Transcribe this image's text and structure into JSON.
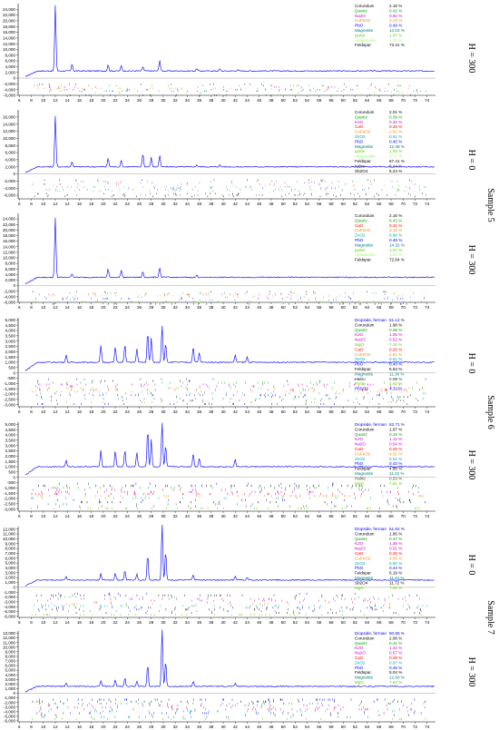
{
  "figure": {
    "side_labels": [
      "H = 300",
      "H = 0",
      "H = 300",
      "H = 0",
      "H = 300",
      "H = 0",
      "H = 300"
    ],
    "sample_labels": [
      "Sample 5",
      "Sample 6",
      "Sample 7"
    ]
  },
  "chart_data": [
    {
      "type": "line",
      "x": [
        6,
        8,
        10,
        12,
        14,
        16,
        18,
        20,
        22,
        24,
        26,
        28,
        30,
        32,
        34,
        36,
        38,
        40,
        42,
        44,
        46,
        48,
        50,
        52,
        54,
        56,
        58,
        60,
        62,
        64,
        66,
        68,
        70,
        72,
        74
      ],
      "yticks": [
        "-6,000",
        "-4,000",
        "-2,000",
        "0",
        "2,000",
        "4,000",
        "6,000",
        "8,000",
        "10,000",
        "12,000",
        "14,000",
        "16,000",
        "18,000",
        "20,000",
        "22,000",
        "24,000"
      ],
      "ylim": [
        -6000,
        26000
      ],
      "background": 2500,
      "peaks": [
        [
          12,
          23000
        ],
        [
          14.8,
          2400
        ],
        [
          20.8,
          2200
        ],
        [
          23,
          1800
        ],
        [
          26.6,
          1600
        ],
        [
          29.4,
          3800
        ],
        [
          35.6,
          900
        ],
        [
          39.4,
          700
        ],
        [
          42.4,
          500
        ]
      ],
      "line_color": "#1a1aff",
      "legend": [
        {
          "name": "Corundum",
          "pct": "2.18 %",
          "color": "#000000"
        },
        {
          "name": "Quartz",
          "pct": "0.42 %",
          "color": "#00aa00"
        },
        {
          "name": "Na2O",
          "pct": "0.50 %",
          "color": "#cc00cc"
        },
        {
          "name": "CuFeO2",
          "pct": "3.13 %",
          "color": "#ff8800"
        },
        {
          "name": "PbO",
          "pct": "0.49 %",
          "color": "#0000ff"
        },
        {
          "name": "Magnetite",
          "pct": "14.03 %",
          "color": "#008080"
        },
        {
          "name": "pyrite",
          "pct": "1.07 %",
          "color": "#66cc00"
        },
        {
          "name": "Akaganeite",
          "pct": "4.01 %",
          "color": "#99ff66"
        },
        {
          "name": "Feldspar",
          "pct": "73.31 %",
          "color": "#000000"
        }
      ]
    },
    {
      "type": "line",
      "x": [
        6,
        8,
        10,
        12,
        14,
        16,
        18,
        20,
        22,
        24,
        26,
        28,
        30,
        32,
        34,
        36,
        38,
        40,
        42,
        44,
        46,
        48,
        50,
        52,
        54,
        56,
        58,
        60,
        62,
        64,
        66,
        68,
        70,
        72,
        74
      ],
      "yticks": [
        "-6,000",
        "-4,000",
        "-2,000",
        "0",
        "2,000",
        "4,000",
        "6,000",
        "8,000",
        "10,000",
        "12,000",
        "14,000",
        "16,000"
      ],
      "ylim": [
        -7000,
        18000
      ],
      "background": 2000,
      "peaks": [
        [
          12,
          14500
        ],
        [
          14.8,
          1500
        ],
        [
          20.8,
          2400
        ],
        [
          23,
          1800
        ],
        [
          26.6,
          3800
        ],
        [
          28,
          2600
        ],
        [
          29.4,
          3200
        ],
        [
          35.6,
          600
        ],
        [
          39.4,
          500
        ]
      ],
      "line_color": "#1a1aff",
      "legend": [
        {
          "name": "Corundum",
          "pct": "2.01 %",
          "color": "#000000"
        },
        {
          "name": "Quartz",
          "pct": "0.39 %",
          "color": "#00aa00"
        },
        {
          "name": "K2O",
          "pct": "0.32 %",
          "color": "#cc00cc"
        },
        {
          "name": "CaO",
          "pct": "0.28 %",
          "color": "#ff0000"
        },
        {
          "name": "CuFeO2",
          "pct": "2.61 %",
          "color": "#ff8800"
        },
        {
          "name": "ZnO2",
          "pct": "0.61 %",
          "color": "#00aaaa"
        },
        {
          "name": "PbO",
          "pct": "0.40 %",
          "color": "#0000ff"
        },
        {
          "name": "Magnetite",
          "pct": "12.38 %",
          "color": "#008080"
        },
        {
          "name": "pyrite",
          "pct": "1.00 %",
          "color": "#66cc00"
        },
        {
          "name": "Akaganeite",
          "pct": "3.71 %",
          "color": "#99ff66"
        },
        {
          "name": "Feldspar",
          "pct": "67.41 %",
          "color": "#000000"
        },
        {
          "name": "halite",
          "pct": "5.14 %",
          "color": "#444444"
        },
        {
          "name": "Sb2O4",
          "pct": "5.24 %",
          "color": "#000000"
        }
      ]
    },
    {
      "type": "line",
      "x": [
        6,
        8,
        10,
        12,
        14,
        16,
        18,
        20,
        22,
        24,
        26,
        28,
        30,
        32,
        34,
        36,
        38,
        40,
        42,
        44,
        46,
        48,
        50,
        52,
        54,
        56,
        58,
        60,
        62,
        64,
        66,
        68,
        70,
        72,
        74
      ],
      "yticks": [
        "-6,000",
        "-4,000",
        "-2,000",
        "0",
        "2,000",
        "4,000",
        "6,000",
        "8,000",
        "10,000",
        "12,000",
        "14,000",
        "16,000",
        "18,000",
        "20,000",
        "22,000",
        "24,000"
      ],
      "ylim": [
        -6000,
        26000
      ],
      "background": 3000,
      "peaks": [
        [
          12,
          21500
        ],
        [
          14.8,
          1500
        ],
        [
          20.8,
          3000
        ],
        [
          23,
          2500
        ],
        [
          26.6,
          2000
        ],
        [
          29.4,
          3600
        ],
        [
          35.6,
          800
        ]
      ],
      "line_color": "#1a1aff",
      "legend": [
        {
          "name": "Corundum",
          "pct": "2.16 %",
          "color": "#000000"
        },
        {
          "name": "Quartz",
          "pct": "0.43 %",
          "color": "#00aa00"
        },
        {
          "name": "CaO",
          "pct": "0.31 %",
          "color": "#ff0000"
        },
        {
          "name": "CuFeO2",
          "pct": "3.10 %",
          "color": "#ff8800"
        },
        {
          "name": "ZnO2",
          "pct": "0.66 %",
          "color": "#00aaaa"
        },
        {
          "name": "PbO",
          "pct": "0.48 %",
          "color": "#0000ff"
        },
        {
          "name": "Magnetite",
          "pct": "14.32 %",
          "color": "#008080"
        },
        {
          "name": "pyrite",
          "pct": "1.07 %",
          "color": "#66cc00"
        },
        {
          "name": "Akaganeite",
          "pct": "3.92 %",
          "color": "#99ff66"
        },
        {
          "name": "Feldspar",
          "pct": "72.64 %",
          "color": "#000000"
        }
      ]
    },
    {
      "type": "line",
      "x": [
        6,
        8,
        10,
        12,
        14,
        16,
        18,
        20,
        22,
        24,
        26,
        28,
        30,
        32,
        34,
        36,
        38,
        40,
        42,
        44,
        46,
        48,
        50,
        52,
        54,
        56,
        58,
        60,
        62,
        64,
        66,
        68,
        70,
        72,
        74
      ],
      "yticks": [
        "-3,000",
        "-2,500",
        "-2,000",
        "-1,500",
        "-1,000",
        "-500",
        "0",
        "500",
        "1,000",
        "1,500",
        "2,000",
        "2,500",
        "3,000",
        "3,500",
        "4,000",
        "4,500",
        "5,000"
      ],
      "ylim": [
        -3200,
        5200
      ],
      "background": 1000,
      "peaks": [
        [
          13.8,
          700
        ],
        [
          19.6,
          1600
        ],
        [
          22,
          1500
        ],
        [
          23.6,
          1700
        ],
        [
          25.6,
          1300
        ],
        [
          27.4,
          2800
        ],
        [
          28,
          2300
        ],
        [
          29.8,
          3500
        ],
        [
          30.4,
          1800
        ],
        [
          35,
          1500
        ],
        [
          36,
          900
        ],
        [
          42,
          700
        ],
        [
          44,
          500
        ]
      ],
      "line_color": "#1a1aff",
      "legend": [
        {
          "name": "Diopside, ferroan",
          "pct": "51.12 %",
          "color": "#0000ff"
        },
        {
          "name": "Corundum",
          "pct": "1.98 %",
          "color": "#000000"
        },
        {
          "name": "Quartz",
          "pct": "0.38 %",
          "color": "#00aa00"
        },
        {
          "name": "K2O",
          "pct": "1.05 %",
          "color": "#cc00cc"
        },
        {
          "name": "Na2O",
          "pct": "0.52 %",
          "color": "#cc00cc"
        },
        {
          "name": "MgO",
          "pct": "7.10 %",
          "color": "#66cc00"
        },
        {
          "name": "CaO",
          "pct": "0.26 %",
          "color": "#ff0000"
        },
        {
          "name": "CuFeO2",
          "pct": "4.61 %",
          "color": "#ff8800"
        },
        {
          "name": "ZnO2",
          "pct": "0.61 %",
          "color": "#00aaaa"
        },
        {
          "name": "PbO",
          "pct": "0.40 %",
          "color": "#0000ff"
        },
        {
          "name": "Feldspar",
          "pct": "6.53 %",
          "color": "#000000"
        },
        {
          "name": "Magnetite",
          "pct": "11.30 %",
          "color": "#008080"
        },
        {
          "name": "Halite",
          "pct": "0.88 %",
          "color": "#444444"
        },
        {
          "name": "Pyrite",
          "pct": "2.93 %",
          "color": "#66cc00"
        },
        {
          "name": "PbSO3",
          "pct": "4.32 %",
          "color": "#0000ff"
        }
      ]
    },
    {
      "type": "line",
      "x": [
        6,
        8,
        10,
        12,
        14,
        16,
        18,
        20,
        22,
        24,
        26,
        28,
        30,
        32,
        34,
        36,
        38,
        40,
        42,
        44,
        46,
        48,
        50,
        52,
        54,
        56,
        58,
        60,
        62,
        64,
        66,
        68,
        70,
        72,
        74
      ],
      "yticks": [
        "-3,000",
        "-2,500",
        "-2,000",
        "-1,500",
        "-1,000",
        "-500",
        "0",
        "500",
        "1,000",
        "1,500",
        "2,000",
        "2,500",
        "3,000",
        "3,500",
        "4,000",
        "4,500",
        "5,000"
      ],
      "ylim": [
        -3200,
        5200
      ],
      "background": 1000,
      "peaks": [
        [
          13.8,
          600
        ],
        [
          19.6,
          1500
        ],
        [
          22,
          1500
        ],
        [
          23.6,
          1600
        ],
        [
          25.6,
          1400
        ],
        [
          27.4,
          3500
        ],
        [
          28,
          2600
        ],
        [
          29.8,
          4200
        ],
        [
          30.4,
          2000
        ],
        [
          35,
          1300
        ],
        [
          36,
          800
        ],
        [
          42,
          700
        ]
      ],
      "line_color": "#1a1aff",
      "legend": [
        {
          "name": "Diopside, ferroan",
          "pct": "62.71 %",
          "color": "#0000ff"
        },
        {
          "name": "Corundum",
          "pct": "1.97 %",
          "color": "#000000"
        },
        {
          "name": "Quartz",
          "pct": "0.18 %",
          "color": "#00aa00"
        },
        {
          "name": "K2O",
          "pct": "1.12 %",
          "color": "#cc00cc"
        },
        {
          "name": "Na2O",
          "pct": "0.54 %",
          "color": "#cc00cc"
        },
        {
          "name": "CaO",
          "pct": "0.26 %",
          "color": "#ff0000"
        },
        {
          "name": "CuFeO2",
          "pct": "4.51 %",
          "color": "#ff8800"
        },
        {
          "name": "ZnO2",
          "pct": "0.51 %",
          "color": "#00aaaa"
        },
        {
          "name": "PbO",
          "pct": "0.43 %",
          "color": "#0000ff"
        },
        {
          "name": "Feldspar",
          "pct": "4.95 %",
          "color": "#000000"
        },
        {
          "name": "Magnetite",
          "pct": "11.22 %",
          "color": "#008080"
        },
        {
          "name": "Halite",
          "pct": "0.53 %",
          "color": "#444444"
        },
        {
          "name": "MgO",
          "pct": "7.61 %",
          "color": "#66cc00"
        }
      ]
    },
    {
      "type": "line",
      "x": [
        6,
        8,
        10,
        12,
        14,
        16,
        18,
        20,
        22,
        24,
        26,
        28,
        30,
        32,
        34,
        36,
        38,
        40,
        42,
        44,
        46,
        48,
        50,
        52,
        54,
        56,
        58,
        60,
        62,
        64,
        66,
        68,
        70,
        72,
        74
      ],
      "yticks": [
        "-6,000",
        "-5,000",
        "-4,000",
        "-3,000",
        "-2,000",
        "-1,000",
        "0",
        "1,000",
        "2,000",
        "3,000",
        "4,000",
        "5,000",
        "6,000",
        "7,000",
        "8,000",
        "9,000",
        "10,000",
        "11,000",
        "12,000"
      ],
      "ylim": [
        -6200,
        12500
      ],
      "background": 1500,
      "peaks": [
        [
          13.8,
          800
        ],
        [
          19.6,
          1400
        ],
        [
          22,
          1500
        ],
        [
          23.6,
          2000
        ],
        [
          25.6,
          1200
        ],
        [
          27.4,
          5200
        ],
        [
          29.8,
          11500
        ],
        [
          30.4,
          6000
        ],
        [
          35,
          1200
        ],
        [
          42,
          800
        ],
        [
          44,
          600
        ]
      ],
      "line_color": "#1a1aff",
      "legend": [
        {
          "name": "Diopside, ferroan",
          "pct": "51.62 %",
          "color": "#0000ff"
        },
        {
          "name": "Corundum",
          "pct": "1.95 %",
          "color": "#000000"
        },
        {
          "name": "Quartz",
          "pct": "0.37 %",
          "color": "#00aa00"
        },
        {
          "name": "K2O",
          "pct": "1.38 %",
          "color": "#cc00cc"
        },
        {
          "name": "Na2O",
          "pct": "0.51 %",
          "color": "#cc00cc"
        },
        {
          "name": "CaO",
          "pct": "0.26 %",
          "color": "#ff0000"
        },
        {
          "name": "CuFeO2",
          "pct": "4.55 %",
          "color": "#ff8800"
        },
        {
          "name": "ZnO2",
          "pct": "0.50 %",
          "color": "#00aaaa"
        },
        {
          "name": "PbO",
          "pct": "0.44 %",
          "color": "#0000ff"
        },
        {
          "name": "Feldspar",
          "pct": "6.19 %",
          "color": "#000000"
        },
        {
          "name": "Magnetite",
          "pct": "11.42 %",
          "color": "#008080"
        },
        {
          "name": "Sb2O4",
          "pct": "11.72 %",
          "color": "#000000"
        },
        {
          "name": "MgO",
          "pct": "7.50 %",
          "color": "#66cc00"
        }
      ]
    },
    {
      "type": "line",
      "x": [
        6,
        8,
        10,
        12,
        14,
        16,
        18,
        20,
        22,
        24,
        26,
        28,
        30,
        32,
        34,
        36,
        38,
        40,
        42,
        44,
        46,
        48,
        50,
        52,
        54,
        56,
        58,
        60,
        62,
        64,
        66,
        68,
        70,
        72,
        74
      ],
      "yticks": [
        "-6,000",
        "-5,000",
        "-4,000",
        "-3,000",
        "-2,000",
        "-1,000",
        "0",
        "1,000",
        "2,000",
        "3,000",
        "4,000",
        "5,000",
        "6,000",
        "7,000",
        "8,000",
        "9,000",
        "10,000",
        "11,000",
        "12,000",
        "13,000"
      ],
      "ylim": [
        -6200,
        13500
      ],
      "background": 1500,
      "peaks": [
        [
          13.8,
          700
        ],
        [
          19.6,
          1300
        ],
        [
          22,
          1400
        ],
        [
          23.6,
          1800
        ],
        [
          25.6,
          1100
        ],
        [
          27.4,
          4800
        ],
        [
          29.8,
          12600
        ],
        [
          30.4,
          5500
        ],
        [
          35,
          1100
        ],
        [
          42,
          700
        ]
      ],
      "line_color": "#1a1aff",
      "legend": [
        {
          "name": "Diopside, ferroan",
          "pct": "60.55 %",
          "color": "#0000ff"
        },
        {
          "name": "Corundum",
          "pct": "2.06 %",
          "color": "#000000"
        },
        {
          "name": "Quartz",
          "pct": "0.41 %",
          "color": "#00aa00"
        },
        {
          "name": "K2O",
          "pct": "1.42 %",
          "color": "#cc00cc"
        },
        {
          "name": "Na2O",
          "pct": "0.57 %",
          "color": "#cc00cc"
        },
        {
          "name": "CaO",
          "pct": "0.29 %",
          "color": "#ff0000"
        },
        {
          "name": "ZnO2",
          "pct": "0.67 %",
          "color": "#00aaaa"
        },
        {
          "name": "PbO",
          "pct": "0.45 %",
          "color": "#0000ff"
        },
        {
          "name": "Feldspar",
          "pct": "5.04 %",
          "color": "#000000"
        },
        {
          "name": "Magnetite",
          "pct": "12.60 %",
          "color": "#008080"
        },
        {
          "name": "MgO",
          "pct": "7.64 %",
          "color": "#66cc00"
        }
      ]
    }
  ]
}
